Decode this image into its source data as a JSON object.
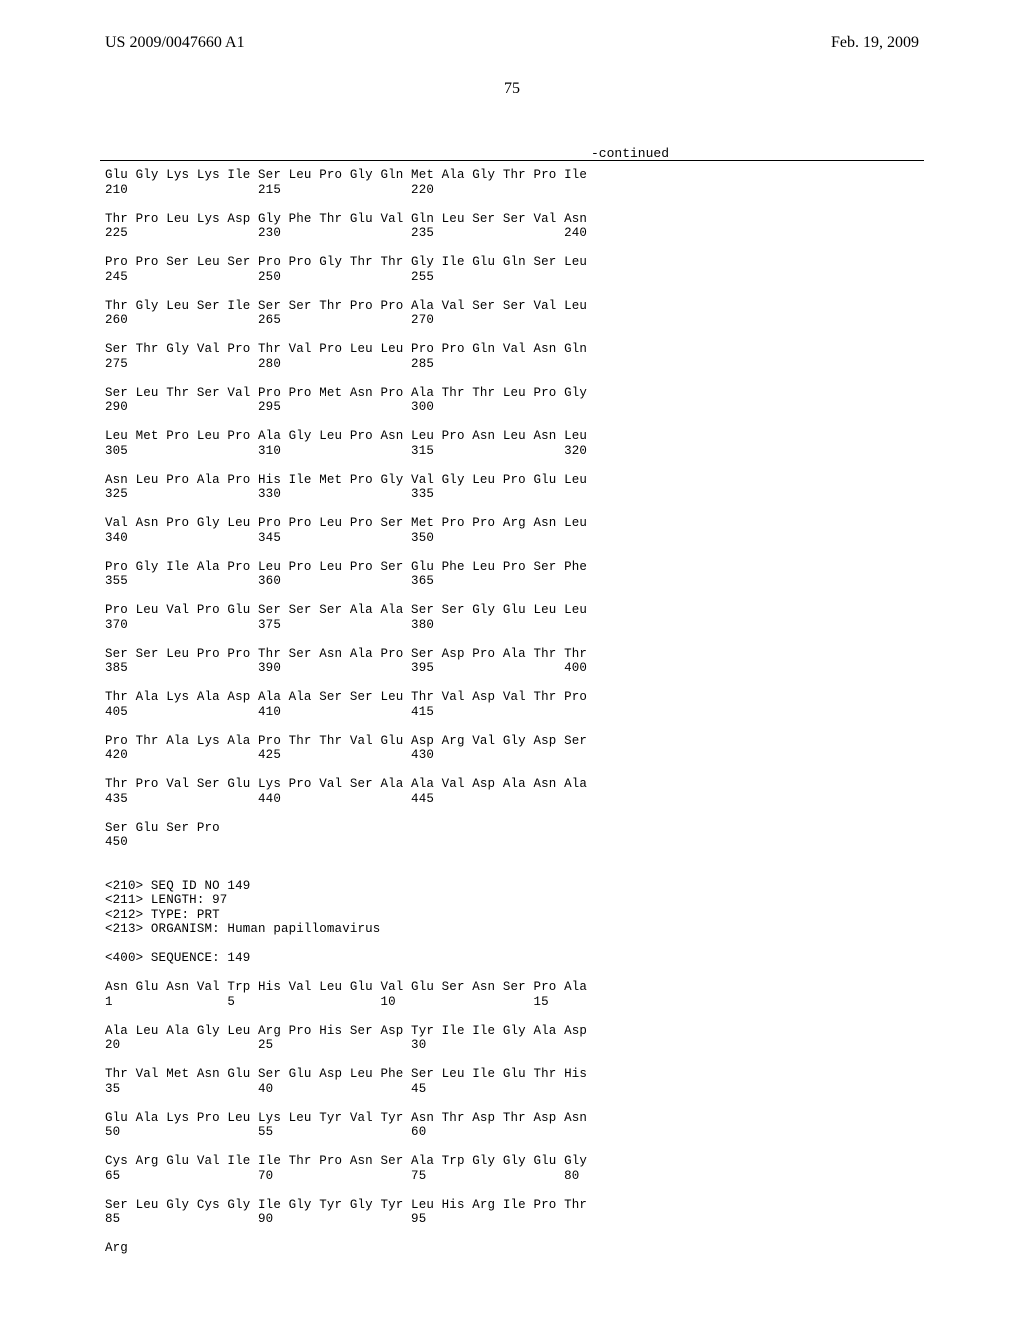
{
  "header": {
    "left": "US 2009/0047660 A1",
    "right": "Feb. 19, 2009",
    "page_number": "75",
    "continued": "-continued"
  },
  "sequence_lines": [
    "Glu Gly Lys Lys Ile Ser Leu Pro Gly Gln Met Ala Gly Thr Pro Ile",
    "210                 215                 220",
    "",
    "Thr Pro Leu Lys Asp Gly Phe Thr Glu Val Gln Leu Ser Ser Val Asn",
    "225                 230                 235                 240",
    "",
    "Pro Pro Ser Leu Ser Pro Pro Gly Thr Thr Gly Ile Glu Gln Ser Leu",
    "245                 250                 255",
    "",
    "Thr Gly Leu Ser Ile Ser Ser Thr Pro Pro Ala Val Ser Ser Val Leu",
    "260                 265                 270",
    "",
    "Ser Thr Gly Val Pro Thr Val Pro Leu Leu Pro Pro Gln Val Asn Gln",
    "275                 280                 285",
    "",
    "Ser Leu Thr Ser Val Pro Pro Met Asn Pro Ala Thr Thr Leu Pro Gly",
    "290                 295                 300",
    "",
    "Leu Met Pro Leu Pro Ala Gly Leu Pro Asn Leu Pro Asn Leu Asn Leu",
    "305                 310                 315                 320",
    "",
    "Asn Leu Pro Ala Pro His Ile Met Pro Gly Val Gly Leu Pro Glu Leu",
    "325                 330                 335",
    "",
    "Val Asn Pro Gly Leu Pro Pro Leu Pro Ser Met Pro Pro Arg Asn Leu",
    "340                 345                 350",
    "",
    "Pro Gly Ile Ala Pro Leu Pro Leu Pro Ser Glu Phe Leu Pro Ser Phe",
    "355                 360                 365",
    "",
    "Pro Leu Val Pro Glu Ser Ser Ser Ala Ala Ser Ser Gly Glu Leu Leu",
    "370                 375                 380",
    "",
    "Ser Ser Leu Pro Pro Thr Ser Asn Ala Pro Ser Asp Pro Ala Thr Thr",
    "385                 390                 395                 400",
    "",
    "Thr Ala Lys Ala Asp Ala Ala Ser Ser Leu Thr Val Asp Val Thr Pro",
    "405                 410                 415",
    "",
    "Pro Thr Ala Lys Ala Pro Thr Thr Val Glu Asp Arg Val Gly Asp Ser",
    "420                 425                 430",
    "",
    "Thr Pro Val Ser Glu Lys Pro Val Ser Ala Ala Val Asp Ala Asn Ala",
    "435                 440                 445",
    "",
    "Ser Glu Ser Pro",
    "450",
    "",
    "",
    "<210> SEQ ID NO 149",
    "<211> LENGTH: 97",
    "<212> TYPE: PRT",
    "<213> ORGANISM: Human papillomavirus",
    "",
    "<400> SEQUENCE: 149",
    "",
    "Asn Glu Asn Val Trp His Val Leu Glu Val Glu Ser Asn Ser Pro Ala",
    "1               5                   10                  15",
    "",
    "Ala Leu Ala Gly Leu Arg Pro His Ser Asp Tyr Ile Ile Gly Ala Asp",
    "20                  25                  30",
    "",
    "Thr Val Met Asn Glu Ser Glu Asp Leu Phe Ser Leu Ile Glu Thr His",
    "35                  40                  45",
    "",
    "Glu Ala Lys Pro Leu Lys Leu Tyr Val Tyr Asn Thr Asp Thr Asp Asn",
    "50                  55                  60",
    "",
    "Cys Arg Glu Val Ile Ile Thr Pro Asn Ser Ala Trp Gly Gly Glu Gly",
    "65                  70                  75                  80",
    "",
    "Ser Leu Gly Cys Gly Ile Gly Tyr Gly Tyr Leu His Arg Ile Pro Thr",
    "85                  90                  95",
    "",
    "Arg"
  ]
}
